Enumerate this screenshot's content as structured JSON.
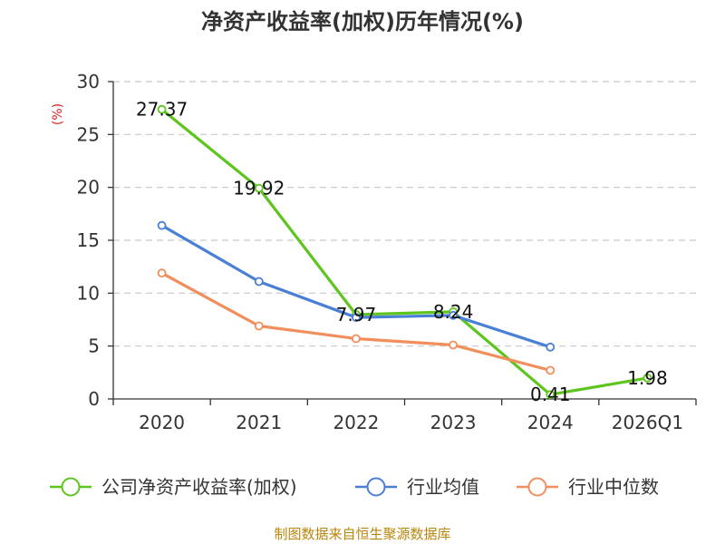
{
  "chart_data": {
    "type": "line",
    "title": "净资产收益率(加权)历年情况(%)",
    "ylabel": "(%)",
    "xlabel": "",
    "categories": [
      "2020",
      "2021",
      "2022",
      "2023",
      "2024",
      "2026Q1"
    ],
    "ylim": [
      0,
      30
    ],
    "yticks": [
      0,
      5,
      10,
      15,
      20,
      25,
      30
    ],
    "grid": true,
    "legend_position": "bottom",
    "series": [
      {
        "name": "公司净资产收益率(加权)",
        "color": "#5ec41e",
        "values": [
          27.37,
          19.92,
          7.97,
          8.24,
          0.41,
          1.98
        ],
        "labels": [
          "27.37",
          "19.92",
          "7.97",
          "8.24",
          "0.41",
          "1.98"
        ]
      },
      {
        "name": "行业均值",
        "color": "#4a7fd6",
        "values": [
          16.4,
          11.1,
          7.7,
          7.9,
          4.9,
          null
        ]
      },
      {
        "name": "行业中位数",
        "color": "#f28e5b",
        "values": [
          11.9,
          6.9,
          5.7,
          5.1,
          2.7,
          null
        ]
      }
    ]
  },
  "source_text": "制图数据来自恒生聚源数据库"
}
